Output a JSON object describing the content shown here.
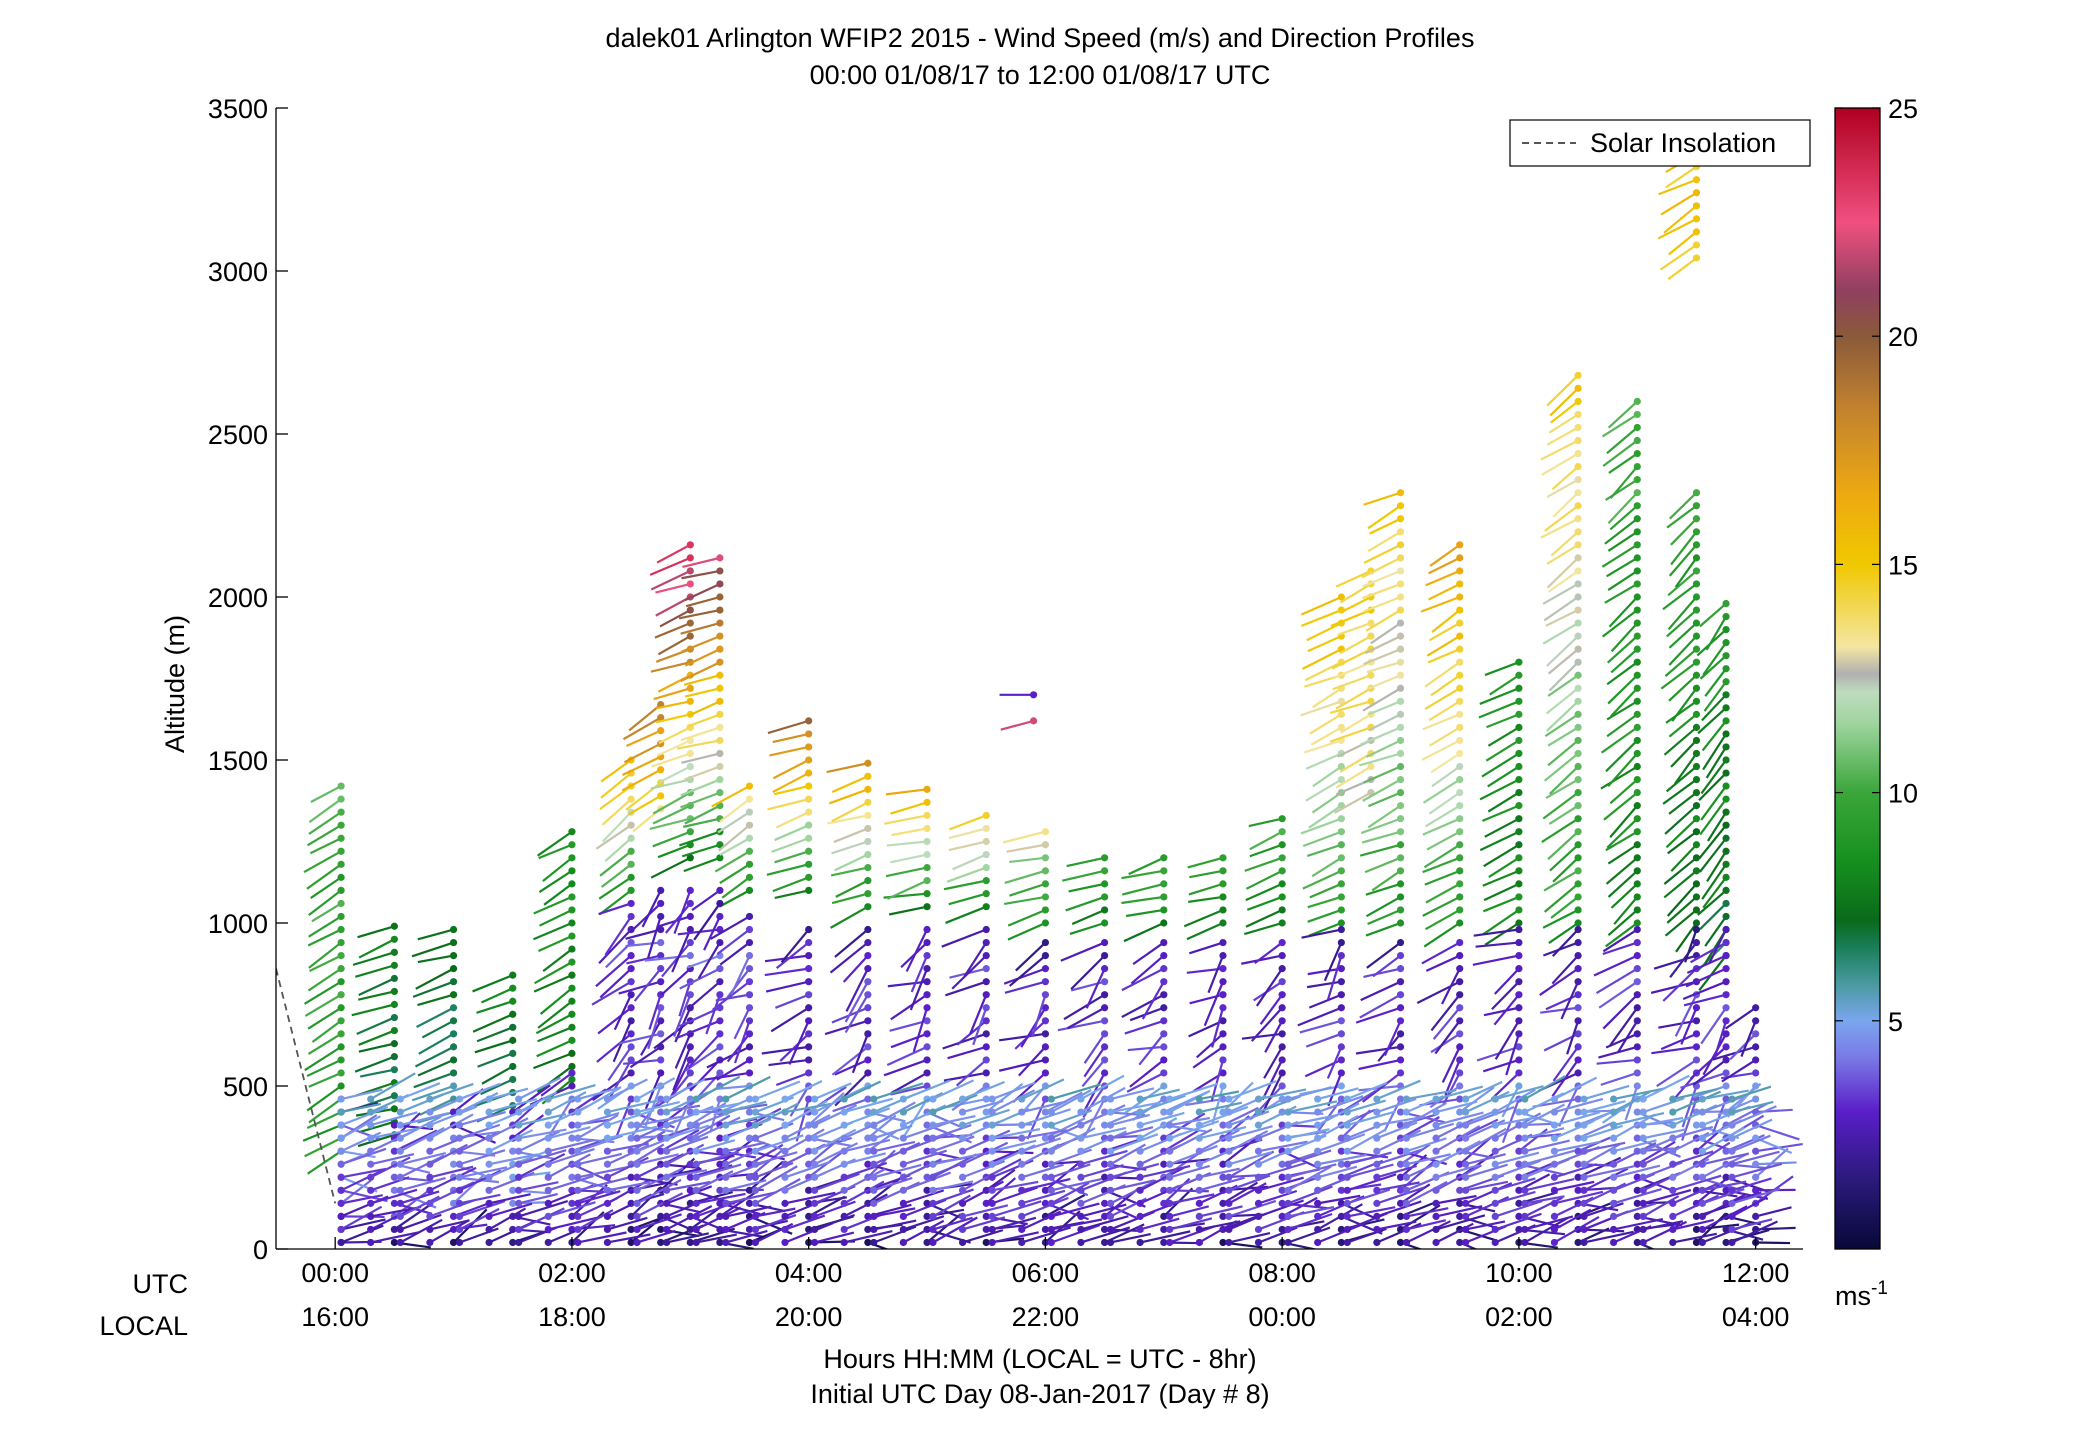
{
  "chart_data": {
    "type": "scatter",
    "title": "dalek01 Arlington WFIP2 2015 - Wind Speed (m/s) and Direction Profiles",
    "subtitle": "00:00 01/08/17 to 12:00 01/08/17  UTC",
    "ylabel": "Altitude (m)",
    "xlabel": "Hours HH:MM  (LOCAL = UTC - 8hr)",
    "xlabel2": "Initial UTC Day 08-Jan-2017 (Day # 8)",
    "xrow_labels": {
      "utc": "UTC",
      "local": "LOCAL"
    },
    "xlim_hours": [
      -0.5,
      12.4
    ],
    "ylim": [
      0,
      3500
    ],
    "y_ticks": [
      0,
      500,
      1000,
      1500,
      2000,
      2500,
      3000,
      3500
    ],
    "x_ticks": [
      {
        "hour": 0,
        "utc": "00:00",
        "local": "16:00"
      },
      {
        "hour": 2,
        "utc": "02:00",
        "local": "18:00"
      },
      {
        "hour": 4,
        "utc": "04:00",
        "local": "20:00"
      },
      {
        "hour": 6,
        "utc": "06:00",
        "local": "22:00"
      },
      {
        "hour": 8,
        "utc": "08:00",
        "local": "00:00"
      },
      {
        "hour": 10,
        "utc": "10:00",
        "local": "02:00"
      },
      {
        "hour": 12,
        "utc": "12:00",
        "local": "04:00"
      }
    ],
    "legend": {
      "label": "Solar Insolation",
      "placement": "top-right",
      "line_style": "dashed",
      "color": "#555555"
    },
    "colorbar": {
      "range": [
        0,
        25
      ],
      "ticks": [
        5,
        10,
        15,
        20,
        25
      ],
      "unit": "ms",
      "unit_exp": "-1",
      "stops": [
        {
          "v": 0,
          "color": "#080838"
        },
        {
          "v": 1.5,
          "color": "#2a1a7a"
        },
        {
          "v": 3,
          "color": "#5a1ec8"
        },
        {
          "v": 4.2,
          "color": "#7a7ae6"
        },
        {
          "v": 5,
          "color": "#7aa6ee"
        },
        {
          "v": 5.8,
          "color": "#4a9aa0"
        },
        {
          "v": 6.6,
          "color": "#1a7e5a"
        },
        {
          "v": 7.2,
          "color": "#0a6a1a"
        },
        {
          "v": 8.5,
          "color": "#17901f"
        },
        {
          "v": 10,
          "color": "#3aa63a"
        },
        {
          "v": 11.5,
          "color": "#9ed49e"
        },
        {
          "v": 12.2,
          "color": "#bedcbe"
        },
        {
          "v": 12.6,
          "color": "#b0b0b0"
        },
        {
          "v": 13.2,
          "color": "#f4e6a0"
        },
        {
          "v": 15,
          "color": "#f0c800"
        },
        {
          "v": 16.5,
          "color": "#eeaa10"
        },
        {
          "v": 18.5,
          "color": "#c08030"
        },
        {
          "v": 20,
          "color": "#8a5a3a"
        },
        {
          "v": 21,
          "color": "#904060"
        },
        {
          "v": 22.5,
          "color": "#f05080"
        },
        {
          "v": 25,
          "color": "#b00020"
        }
      ]
    },
    "solar_insolation_line": [
      {
        "hour": -0.5,
        "alt": 860
      },
      {
        "hour": 0,
        "alt": 140
      }
    ],
    "upper_profiles": [
      {
        "hour": 0.05,
        "top": 1420,
        "bottom": 300,
        "speed_top": 10,
        "speed_bottom": 9,
        "dir": 240
      },
      {
        "hour": 0.5,
        "top": 1010,
        "bottom": 350,
        "speed_top": 8,
        "speed_bottom": 7,
        "dir": 250
      },
      {
        "hour": 1.0,
        "top": 1000,
        "bottom": 420,
        "speed_top": 8,
        "speed_bottom": 6,
        "dir": 250
      },
      {
        "hour": 1.5,
        "top": 840,
        "bottom": 440,
        "speed_top": 8,
        "speed_bottom": 6,
        "dir": 250
      },
      {
        "hour": 2.0,
        "top": 1280,
        "bottom": 520,
        "speed_top": 9,
        "speed_bottom": 7.5,
        "dir": 240
      },
      {
        "hour": 2.5,
        "top": 1500,
        "bottom": 1100,
        "speed_top": 15,
        "speed_bottom": 9,
        "dir": 230
      },
      {
        "hour": 2.75,
        "top": 1700,
        "bottom": 1350,
        "speed_top": 19,
        "speed_bottom": 14,
        "dir": 240
      },
      {
        "hour": 3.0,
        "top": 2180,
        "bottom": 1200,
        "speed_top": 24,
        "speed_bottom": 8,
        "dir": 250
      },
      {
        "hour": 3.25,
        "top": 2140,
        "bottom": 1200,
        "speed_top": 22,
        "speed_bottom": 8,
        "dir": 250
      },
      {
        "hour": 3.5,
        "top": 1430,
        "bottom": 1100,
        "speed_top": 15,
        "speed_bottom": 8,
        "dir": 240
      },
      {
        "hour": 4.0,
        "top": 1620,
        "bottom": 1100,
        "speed_top": 19,
        "speed_bottom": 8,
        "dir": 250
      },
      {
        "hour": 4.5,
        "top": 1490,
        "bottom": 1050,
        "speed_top": 17,
        "speed_bottom": 8,
        "dir": 250
      },
      {
        "hour": 5.0,
        "top": 1410,
        "bottom": 1050,
        "speed_top": 16,
        "speed_bottom": 8,
        "dir": 255
      },
      {
        "hour": 5.5,
        "top": 1340,
        "bottom": 1050,
        "speed_top": 15,
        "speed_bottom": 8,
        "dir": 255
      },
      {
        "hour": 6.0,
        "top": 1280,
        "bottom": 1000,
        "speed_top": 13,
        "speed_bottom": 8,
        "dir": 255
      },
      {
        "hour": 6.5,
        "top": 1230,
        "bottom": 1000,
        "speed_top": 10,
        "speed_bottom": 8,
        "dir": 255
      },
      {
        "hour": 7.0,
        "top": 1200,
        "bottom": 1000,
        "speed_top": 10,
        "speed_bottom": 8,
        "dir": 255
      },
      {
        "hour": 7.5,
        "top": 1200,
        "bottom": 1000,
        "speed_top": 10,
        "speed_bottom": 8,
        "dir": 255
      },
      {
        "hour": 8.0,
        "top": 1340,
        "bottom": 1000,
        "speed_top": 10,
        "speed_bottom": 8,
        "dir": 250
      },
      {
        "hour": 8.5,
        "top": 2010,
        "bottom": 1000,
        "speed_top": 16,
        "speed_bottom": 9,
        "dir": 245
      },
      {
        "hour": 8.75,
        "top": 2100,
        "bottom": 1400,
        "speed_top": 15,
        "speed_bottom": 13,
        "dir": 245
      },
      {
        "hour": 9.0,
        "top": 2330,
        "bottom": 1000,
        "speed_top": 15,
        "speed_bottom": 9,
        "dir": 245
      },
      {
        "hour": 9.5,
        "top": 2180,
        "bottom": 1000,
        "speed_top": 17,
        "speed_bottom": 9,
        "dir": 240
      },
      {
        "hour": 10.0,
        "top": 1800,
        "bottom": 1000,
        "speed_top": 9,
        "speed_bottom": 8,
        "dir": 240
      },
      {
        "hour": 10.5,
        "top": 2690,
        "bottom": 1000,
        "speed_top": 15,
        "speed_bottom": 9,
        "dir": 235
      },
      {
        "hour": 11.0,
        "top": 2600,
        "bottom": 1000,
        "speed_top": 10,
        "speed_bottom": 8,
        "dir": 230
      },
      {
        "hour": 11.5,
        "top": 2330,
        "bottom": 1000,
        "speed_top": 10,
        "speed_bottom": 7,
        "dir": 225
      },
      {
        "hour": 11.75,
        "top": 2000,
        "bottom": 900,
        "speed_top": 9,
        "speed_bottom": 7,
        "dir": 220
      },
      {
        "hour": 11.5,
        "top": 3360,
        "bottom": 3040,
        "speed_top": 15,
        "speed_bottom": 15,
        "dir": 240
      }
    ],
    "lower_profiles": [
      {
        "hour": 0.05,
        "top": 430
      },
      {
        "hour": 0.5,
        "top": 400
      },
      {
        "hour": 1.0,
        "top": 420
      },
      {
        "hour": 1.5,
        "top": 420
      },
      {
        "hour": 2.0,
        "top": 560
      },
      {
        "hour": 2.5,
        "top": 1090
      },
      {
        "hour": 2.75,
        "top": 1120
      },
      {
        "hour": 3.0,
        "top": 1120
      },
      {
        "hour": 3.25,
        "top": 1100
      },
      {
        "hour": 3.5,
        "top": 1050
      },
      {
        "hour": 4.0,
        "top": 1000
      },
      {
        "hour": 4.5,
        "top": 1010
      },
      {
        "hour": 5.0,
        "top": 990
      },
      {
        "hour": 5.5,
        "top": 990
      },
      {
        "hour": 6.0,
        "top": 960
      },
      {
        "hour": 6.5,
        "top": 950
      },
      {
        "hour": 7.0,
        "top": 960
      },
      {
        "hour": 7.5,
        "top": 960
      },
      {
        "hour": 8.0,
        "top": 960
      },
      {
        "hour": 8.5,
        "top": 990
      },
      {
        "hour": 9.0,
        "top": 960
      },
      {
        "hour": 9.5,
        "top": 960
      },
      {
        "hour": 10.0,
        "top": 980
      },
      {
        "hour": 10.5,
        "top": 1000
      },
      {
        "hour": 11.0,
        "top": 1000
      },
      {
        "hour": 11.5,
        "top": 990
      },
      {
        "hour": 11.75,
        "top": 990
      },
      {
        "hour": 12.0,
        "top": 760
      }
    ],
    "annotations": [
      {
        "hour": 5.9,
        "alt": 1700,
        "speed": 3,
        "dir": 270
      },
      {
        "hour": 5.9,
        "alt": 1620,
        "speed": 22,
        "dir": 255
      }
    ]
  }
}
